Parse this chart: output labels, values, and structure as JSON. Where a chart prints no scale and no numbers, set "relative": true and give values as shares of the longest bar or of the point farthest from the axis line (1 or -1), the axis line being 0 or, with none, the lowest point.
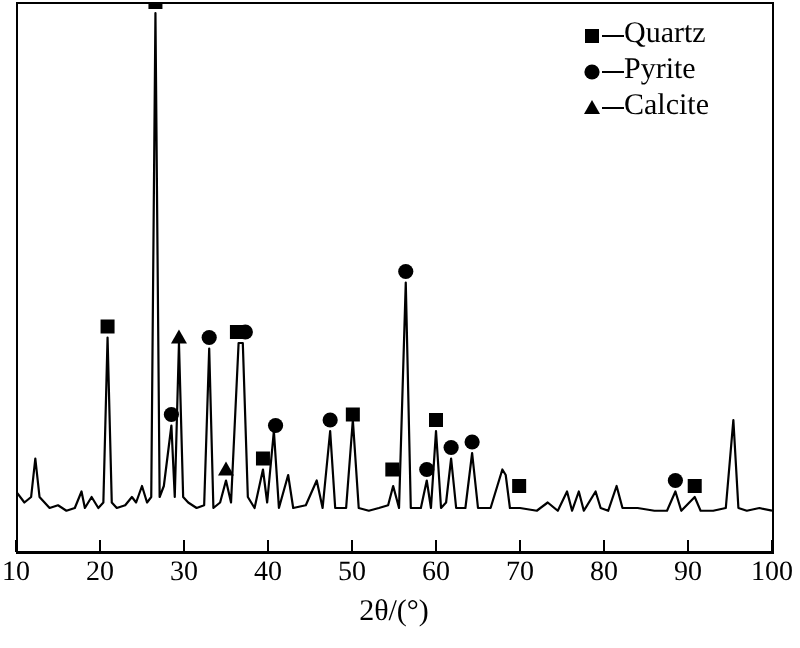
{
  "chart_data": {
    "type": "line",
    "relative": true,
    "xlabel": "2θ/(°)",
    "xlim": [
      10,
      100
    ],
    "xticks": [
      10,
      20,
      30,
      40,
      50,
      60,
      70,
      80,
      90,
      100
    ],
    "legend": "top right",
    "grid": false,
    "series": [
      {
        "type": "line",
        "color": "#000000",
        "marker": "none",
        "x": [
          10,
          11,
          11.8,
          12.3,
          12.8,
          14,
          15,
          16,
          17,
          17.8,
          18.2,
          19,
          19.8,
          20.4,
          20.9,
          21.4,
          22,
          23,
          23.8,
          24.3,
          25,
          25.6,
          26.1,
          26.6,
          27.1,
          27.6,
          28.5,
          28.9,
          29.4,
          29.9,
          30.5,
          31.5,
          32.4,
          33,
          33.5,
          34.3,
          35,
          35.6,
          36.5,
          37,
          37.6,
          38.4,
          39.4,
          39.9,
          40.7,
          41.3,
          42.4,
          43,
          44.5,
          45.8,
          46.5,
          47.4,
          48,
          49.3,
          50.1,
          50.8,
          52,
          53.2,
          54.3,
          54.9,
          55.6,
          56.4,
          57,
          58.2,
          58.9,
          59.4,
          60,
          60.6,
          61.2,
          61.8,
          62.4,
          63.5,
          64.3,
          65,
          66.5,
          67.9,
          68.3,
          68.8,
          70,
          72,
          73.3,
          74.5,
          75.6,
          76.2,
          77,
          77.6,
          79,
          79.6,
          80.5,
          81.5,
          82.2,
          84,
          86,
          87.5,
          88.5,
          89.2,
          90.8,
          91.5,
          93,
          94.5,
          95.4,
          96,
          97,
          98.5,
          100
        ],
        "values": [
          0.11,
          0.09,
          0.1,
          0.17,
          0.1,
          0.08,
          0.085,
          0.075,
          0.08,
          0.11,
          0.08,
          0.1,
          0.08,
          0.09,
          0.39,
          0.09,
          0.08,
          0.085,
          0.1,
          0.09,
          0.12,
          0.09,
          0.1,
          0.98,
          0.1,
          0.12,
          0.23,
          0.1,
          0.38,
          0.1,
          0.09,
          0.08,
          0.085,
          0.37,
          0.08,
          0.09,
          0.13,
          0.09,
          0.38,
          0.38,
          0.1,
          0.08,
          0.15,
          0.09,
          0.22,
          0.08,
          0.14,
          0.08,
          0.085,
          0.13,
          0.08,
          0.22,
          0.08,
          0.08,
          0.24,
          0.08,
          0.075,
          0.08,
          0.085,
          0.12,
          0.08,
          0.49,
          0.08,
          0.08,
          0.13,
          0.08,
          0.22,
          0.08,
          0.09,
          0.17,
          0.08,
          0.08,
          0.18,
          0.08,
          0.08,
          0.15,
          0.14,
          0.08,
          0.08,
          0.075,
          0.09,
          0.075,
          0.11,
          0.075,
          0.11,
          0.075,
          0.11,
          0.08,
          0.075,
          0.12,
          0.08,
          0.08,
          0.075,
          0.075,
          0.11,
          0.075,
          0.1,
          0.075,
          0.075,
          0.08,
          0.24,
          0.08,
          0.075,
          0.08,
          0.075
        ]
      },
      {
        "type": "scatter",
        "name": "Quartz",
        "color": "#000000",
        "marker": "square",
        "x": [
          20.9,
          26.6,
          36.3,
          39.4,
          50.1,
          54.8,
          60,
          69.9,
          90.8
        ],
        "values": [
          0.41,
          1,
          0.4,
          0.17,
          0.25,
          0.15,
          0.24,
          0.12,
          0.12
        ]
      },
      {
        "type": "scatter",
        "name": "Pyrite",
        "color": "#000000",
        "marker": "circle",
        "x": [
          28.5,
          33,
          37.3,
          40.9,
          47.4,
          56.4,
          58.9,
          61.8,
          64.3,
          88.5
        ],
        "values": [
          0.25,
          0.39,
          0.4,
          0.23,
          0.24,
          0.51,
          0.15,
          0.19,
          0.2,
          0.13
        ]
      },
      {
        "type": "scatter",
        "name": "Calcite",
        "color": "#000000",
        "marker": "triangle",
        "x": [
          29.4,
          35
        ],
        "values": [
          0.39,
          0.15
        ]
      }
    ]
  }
}
